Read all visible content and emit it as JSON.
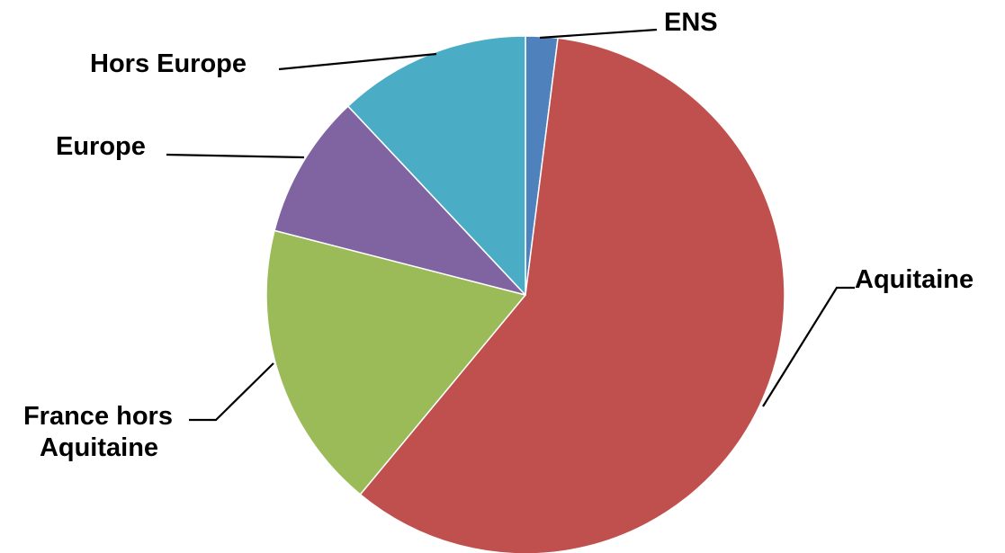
{
  "chart_data": {
    "type": "pie",
    "title": "",
    "slices": [
      {
        "label": "ENS",
        "value": 2,
        "color": "#4F81BD"
      },
      {
        "label": "Aquitaine",
        "value": 59,
        "color": "#C0504D"
      },
      {
        "label": "France hors Aquitaine",
        "value": 18,
        "color": "#9BBB59"
      },
      {
        "label": "Europe",
        "value": 9,
        "color": "#8064A2"
      },
      {
        "label": "Hors Europe",
        "value": 12,
        "color": "#4BACC6"
      }
    ],
    "legend": "none",
    "data_labels": "outside with leader lines"
  }
}
